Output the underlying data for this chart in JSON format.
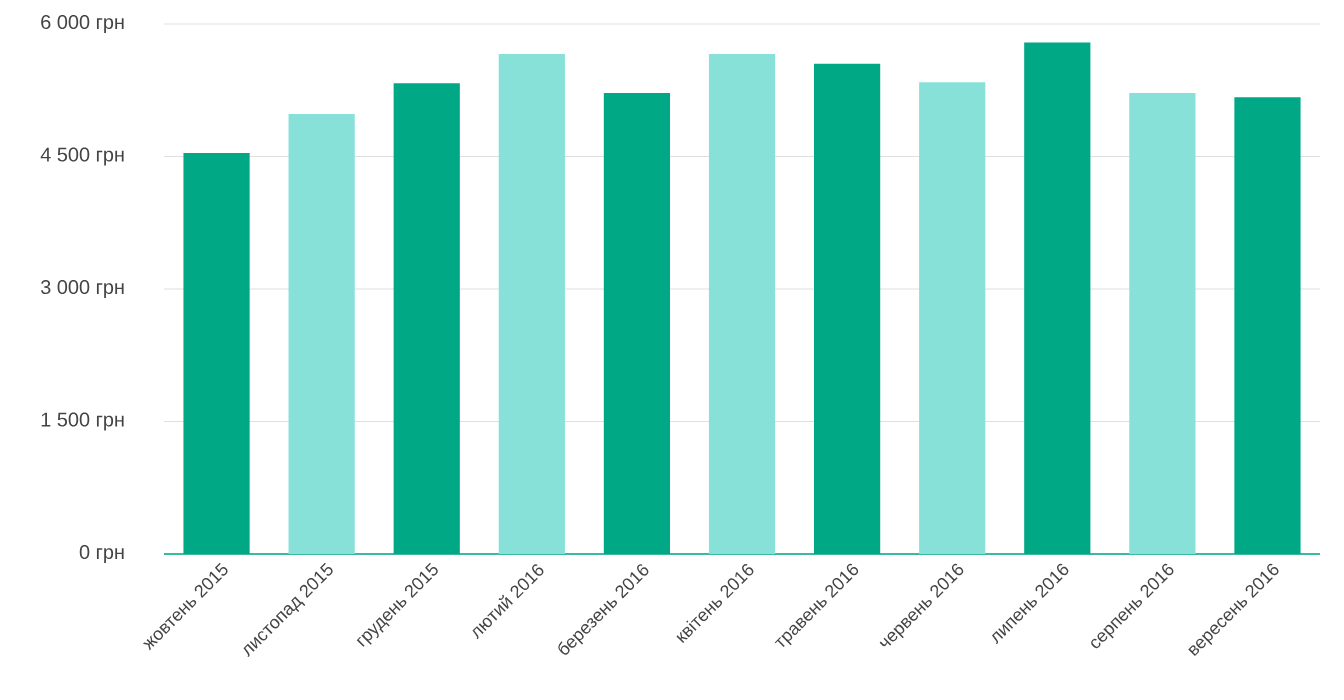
{
  "chart_data": {
    "type": "bar",
    "categories": [
      "жовтень 2015",
      "листопад 2015",
      "грудень 2015",
      "лютий 2016",
      "березень 2016",
      "квітень 2016",
      "травень 2016",
      "червень 2016",
      "липень 2016",
      "серпень 2016",
      "вересень 2016"
    ],
    "values": [
      4540,
      4980,
      5330,
      5660,
      5220,
      5660,
      5550,
      5340,
      5790,
      5220,
      5170
    ],
    "colors": [
      "#00a886",
      "#88e1d9",
      "#00a886",
      "#88e1d9",
      "#00a886",
      "#88e1d9",
      "#00a886",
      "#88e1d9",
      "#00a886",
      "#88e1d9",
      "#00a886"
    ],
    "ylim": [
      0,
      6000
    ],
    "yticks": [
      {
        "value": 0,
        "label": "0 грн"
      },
      {
        "value": 1500,
        "label": "1 500 грн"
      },
      {
        "value": 3000,
        "label": "3 000 грн"
      },
      {
        "value": 4500,
        "label": "4 500 грн"
      },
      {
        "value": 6000,
        "label": "6 000 грн"
      }
    ],
    "grid": "y"
  }
}
